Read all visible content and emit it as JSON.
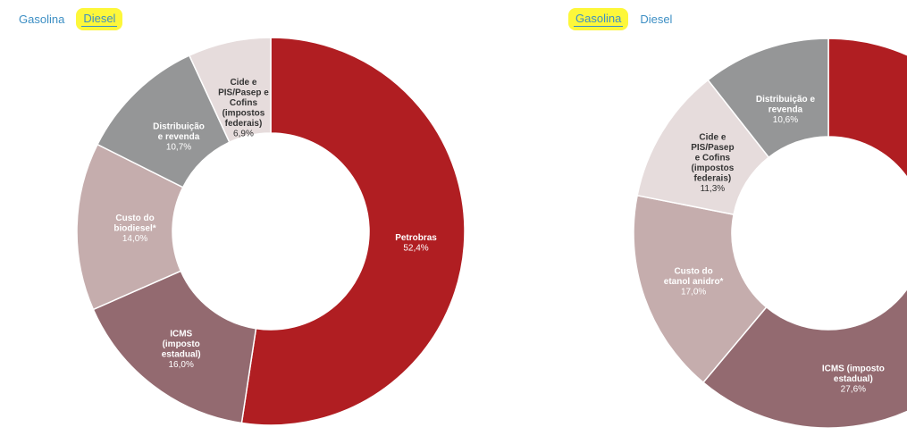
{
  "left_tabs": {
    "gasolina_label": "Gasolina",
    "diesel_label": "Diesel",
    "active": "diesel"
  },
  "right_tabs": {
    "gasolina_label": "Gasolina",
    "diesel_label": "Diesel",
    "active": "gasolina"
  },
  "colors": {
    "tab_link": "#3d8fc4",
    "highlight": "#fdf73a"
  },
  "chart_data": [
    {
      "type": "pie",
      "subtype": "donut",
      "title": "",
      "start": "top, clockwise",
      "slices": [
        {
          "label": [
            "Petrobras"
          ],
          "value_label": "52,4%",
          "value": 52.4,
          "color": "#b01e22",
          "text_color": "#ffffff"
        },
        {
          "label": [
            "ICMS",
            "(imposto",
            "estadual)"
          ],
          "value_label": "16,0%",
          "value": 16.0,
          "color": "#936a70",
          "text_color": "#ffffff"
        },
        {
          "label": [
            "Custo do",
            "biodiesel*"
          ],
          "value_label": "14,0%",
          "value": 14.0,
          "color": "#c5adad",
          "text_color": "#ffffff"
        },
        {
          "label": [
            "Distribuição",
            "e revenda"
          ],
          "value_label": "10,7%",
          "value": 10.7,
          "color": "#959697",
          "text_color": "#ffffff"
        },
        {
          "label": [
            "Cide e",
            "PIS/Pasep e",
            "Cofins",
            "(impostos",
            "federais)"
          ],
          "value_label": "6,9%",
          "value": 6.9,
          "color": "#e6dcdc",
          "text_color": "#333333"
        }
      ]
    },
    {
      "type": "pie",
      "subtype": "donut",
      "title": "",
      "start": "top, clockwise",
      "partially_visible": true,
      "slices": [
        {
          "label": [],
          "value_label": "",
          "value": 33.5,
          "color": "#b01e22",
          "text_color": "#ffffff"
        },
        {
          "label": [
            "ICMS (imposto",
            "estadual)"
          ],
          "value_label": "27,6%",
          "value": 27.6,
          "color": "#936a70",
          "text_color": "#ffffff"
        },
        {
          "label": [
            "Custo do",
            "etanol anidro*"
          ],
          "value_label": "17,0%",
          "value": 17.0,
          "color": "#c5adad",
          "text_color": "#ffffff"
        },
        {
          "label": [
            "Cide e",
            "PIS/Pasep",
            "e Cofins",
            "(impostos",
            "federais)"
          ],
          "value_label": "11,3%",
          "value": 11.3,
          "color": "#e6dcdc",
          "text_color": "#333333"
        },
        {
          "label": [
            "Distribuição e",
            "revenda"
          ],
          "value_label": "10,6%",
          "value": 10.6,
          "color": "#959697",
          "text_color": "#ffffff"
        }
      ]
    }
  ]
}
